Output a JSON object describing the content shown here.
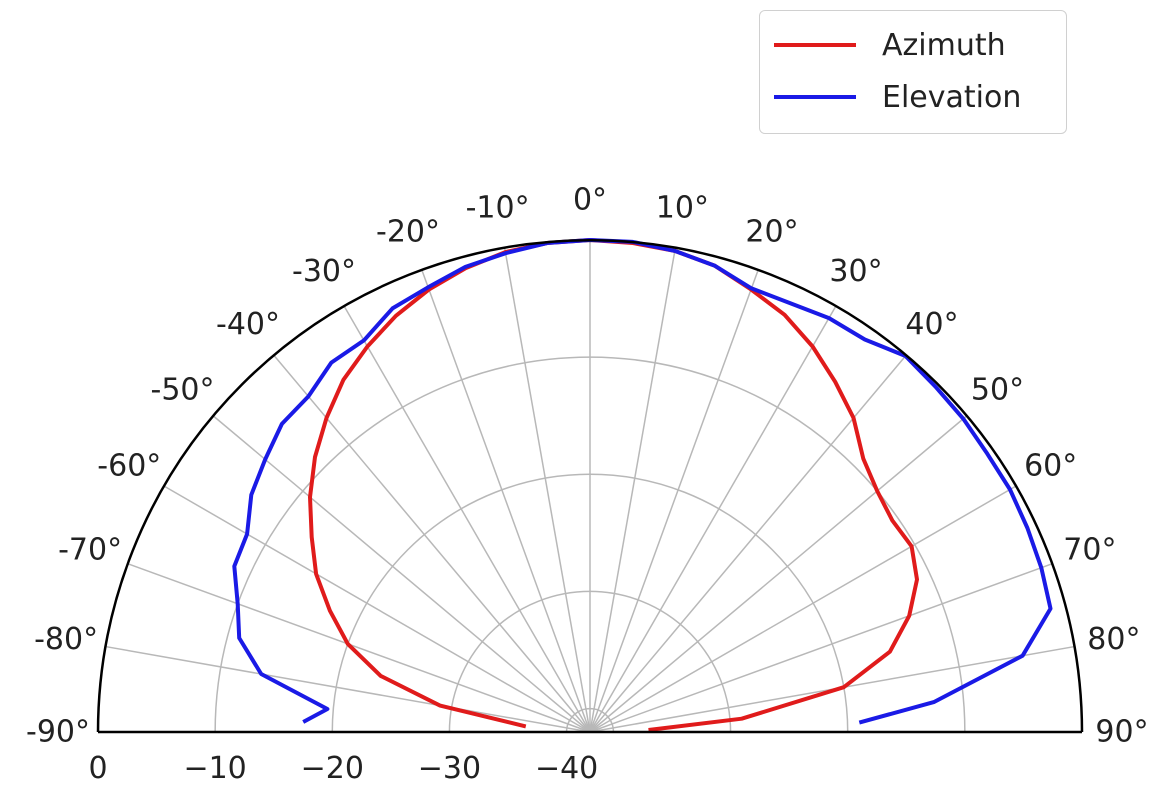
{
  "chart_data": {
    "type": "polar-line",
    "theta_range_deg": [
      -90,
      90
    ],
    "theta_zero": "top",
    "theta_tick_labels": [
      "-90°",
      "-80°",
      "-70°",
      "-60°",
      "-50°",
      "-40°",
      "-30°",
      "-20°",
      "-10°",
      "0°",
      "10°",
      "20°",
      "30°",
      "40°",
      "50°",
      "60°",
      "70°",
      "80°",
      "90°"
    ],
    "theta_ticks_deg": [
      -90,
      -80,
      -70,
      -60,
      -50,
      -40,
      -30,
      -20,
      -10,
      0,
      10,
      20,
      30,
      40,
      50,
      60,
      70,
      80,
      90
    ],
    "r_range": [
      -42,
      0
    ],
    "r_ticks": [
      0,
      -10,
      -20,
      -30,
      -40
    ],
    "r_tick_labels": [
      "0",
      "−10",
      "−20",
      "−30",
      "−40"
    ],
    "grid": true,
    "legend_position": "top-right",
    "series": [
      {
        "name": "Azimuth",
        "color": "#e01b1b",
        "theta_deg": [
          -85,
          -80,
          -75,
          -70,
          -65,
          -60,
          -55,
          -50,
          -45,
          -40,
          -35,
          -30,
          -25,
          -20,
          -15,
          -10,
          -5,
          0,
          5,
          10,
          15,
          20,
          25,
          30,
          35,
          40,
          45,
          50,
          55,
          60,
          65,
          70,
          75,
          80,
          85,
          88
        ],
        "r": [
          -36.5,
          -29,
          -23.5,
          -20,
          -17.5,
          -15,
          -13,
          -10.8,
          -8.8,
          -7,
          -5.3,
          -4,
          -2.8,
          -1.8,
          -1,
          -0.4,
          -0.1,
          0,
          -0.1,
          -0.3,
          -0.8,
          -1.8,
          -2.7,
          -4,
          -5.5,
          -7,
          -9,
          -10,
          -10.5,
          -10.3,
          -11.2,
          -13,
          -15.5,
          -20,
          -29,
          -37
        ]
      },
      {
        "name": "Elevation",
        "color": "#1a1ae6",
        "theta_deg": [
          -88,
          -85,
          -80,
          -75,
          -70,
          -65,
          -60,
          -55,
          -50,
          -45,
          -40,
          -35,
          -30,
          -25,
          -20,
          -15,
          -10,
          -5,
          0,
          5,
          10,
          15,
          20,
          25,
          30,
          35,
          40,
          45,
          50,
          55,
          60,
          65,
          70,
          75,
          80,
          85,
          88
        ],
        "r": [
          -17.5,
          -19.5,
          -13.5,
          -11,
          -10,
          -8.5,
          -8.2,
          -6.7,
          -5.8,
          -4.8,
          -4.6,
          -3.5,
          -3.4,
          -2.1,
          -1.6,
          -0.9,
          -0.5,
          -0.1,
          0,
          0,
          -0.3,
          -0.8,
          -1.7,
          -1.6,
          -1.2,
          -1.1,
          -0.1,
          -0.3,
          -0.4,
          -0.6,
          -0.6,
          -0.8,
          -1,
          -1.3,
          -4.5,
          -12.5,
          -19
        ]
      }
    ]
  },
  "legend": {
    "items": [
      {
        "label": "Azimuth",
        "color": "#e01b1b"
      },
      {
        "label": "Elevation",
        "color": "#1a1ae6"
      }
    ]
  }
}
